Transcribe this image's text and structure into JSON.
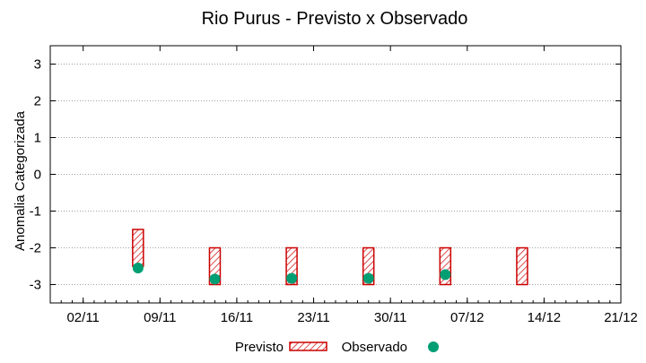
{
  "chart_data": {
    "type": "range-bar-with-points",
    "title": "Rio Purus - Previsto x Observado",
    "xlabel": "",
    "ylabel": "Anomalia Categorizada",
    "x_ticks": [
      "02/11",
      "09/11",
      "16/11",
      "23/11",
      "30/11",
      "07/12",
      "14/12",
      "21/12"
    ],
    "y_ticks": [
      -3,
      -2,
      -1,
      0,
      1,
      2,
      3
    ],
    "xlim": [
      "2024-10-30",
      "2024-12-21"
    ],
    "ylim": [
      -3.5,
      3.5
    ],
    "grid": "horizontal dotted",
    "legend_position": "bottom",
    "series": [
      {
        "name": "Previsto",
        "kind": "range",
        "color": "#cc0000",
        "points": [
          {
            "x": "2024-11-07",
            "low": -2.5,
            "high": -1.5
          },
          {
            "x": "2024-11-14",
            "low": -3.0,
            "high": -2.0
          },
          {
            "x": "2024-11-21",
            "low": -3.0,
            "high": -2.0
          },
          {
            "x": "2024-11-28",
            "low": -3.0,
            "high": -2.0
          },
          {
            "x": "2024-12-05",
            "low": -3.0,
            "high": -2.0
          },
          {
            "x": "2024-12-12",
            "low": -3.0,
            "high": -2.0
          }
        ]
      },
      {
        "name": "Observado",
        "kind": "point",
        "color": "#009e73",
        "points": [
          {
            "x": "2024-11-07",
            "y": -2.55
          },
          {
            "x": "2024-11-14",
            "y": -2.85
          },
          {
            "x": "2024-11-21",
            "y": -2.83
          },
          {
            "x": "2024-11-28",
            "y": -2.83
          },
          {
            "x": "2024-12-05",
            "y": -2.73
          }
        ]
      }
    ]
  }
}
